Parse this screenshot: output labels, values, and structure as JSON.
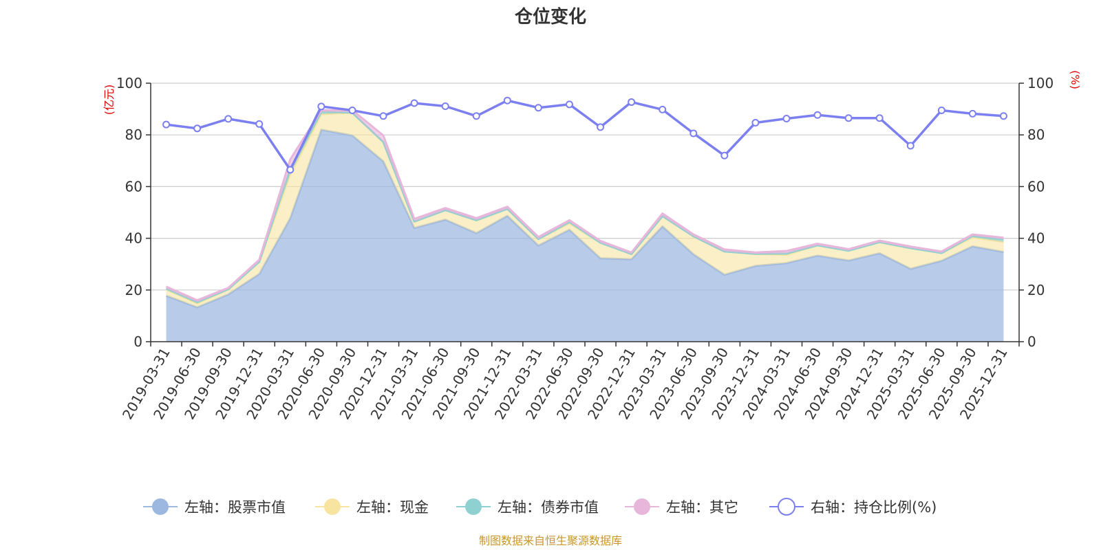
{
  "chart_data": {
    "type": "area",
    "title": "仓位变化",
    "left_unit": "(亿元)",
    "right_unit": "(%)",
    "left_ylim": [
      0,
      100
    ],
    "right_ylim": [
      0,
      100
    ],
    "left_ticks": [
      "0",
      "20",
      "40",
      "60",
      "80",
      "100"
    ],
    "right_ticks": [
      "0",
      "20",
      "40",
      "60",
      "80",
      "100"
    ],
    "categories": [
      "2019-03-31",
      "2019-06-30",
      "2019-09-30",
      "2019-12-31",
      "2020-03-31",
      "2020-06-30",
      "2020-09-30",
      "2020-12-31",
      "2021-03-31",
      "2021-06-30",
      "2021-09-30",
      "2021-12-31",
      "2022-03-31",
      "2022-06-30",
      "2022-09-30",
      "2022-12-31",
      "2023-03-31",
      "2023-06-30",
      "2023-09-30",
      "2023-12-31",
      "2024-03-31",
      "2024-06-30",
      "2024-09-30",
      "2024-12-31",
      "2025-03-31",
      "2025-06-30",
      "2025-09-30",
      "2025-12-31"
    ],
    "series": [
      {
        "name": "左轴：股票市值",
        "axis": "left",
        "color": "#9db8e0",
        "values": [
          17.8,
          13.3,
          18.3,
          26.2,
          47.8,
          82.0,
          79.8,
          69.8,
          44.0,
          47.2,
          42.0,
          48.7,
          37.2,
          43.3,
          32.3,
          31.9,
          44.6,
          33.8,
          25.9,
          29.3,
          30.4,
          33.3,
          31.4,
          34.2,
          28.2,
          31.3,
          36.9,
          34.7
        ]
      },
      {
        "name": "左轴：现金",
        "axis": "left",
        "color": "#f7e4a0",
        "values": [
          2.5,
          1.5,
          2.0,
          4.7,
          17.0,
          6.0,
          8.8,
          7.5,
          2.5,
          3.7,
          5.0,
          2.7,
          2.5,
          2.5,
          6.0,
          2.0,
          4.0,
          7.0,
          9.0,
          4.7,
          3.2,
          4.0,
          3.8,
          4.3,
          8.0,
          3.0,
          3.5,
          3.9
        ]
      },
      {
        "name": "左轴：债券市值",
        "axis": "left",
        "color": "#8fd0d0",
        "values": [
          0.2,
          0.5,
          0.0,
          0.0,
          2.2,
          1.0,
          0.0,
          0.0,
          0.0,
          0.0,
          0.0,
          0.0,
          0.0,
          0.5,
          0.0,
          0.0,
          0.0,
          0.0,
          0.0,
          0.0,
          0.5,
          0.0,
          0.0,
          0.0,
          0.0,
          0.0,
          0.5,
          1.0
        ]
      },
      {
        "name": "左轴：其它",
        "axis": "left",
        "color": "#e8b6db",
        "values": [
          0.8,
          0.7,
          0.5,
          0.8,
          3.5,
          0.5,
          1.0,
          2.5,
          1.0,
          0.8,
          0.8,
          0.8,
          0.8,
          0.7,
          0.7,
          0.6,
          1.0,
          0.7,
          0.8,
          0.5,
          1.0,
          0.6,
          0.6,
          0.6,
          0.6,
          0.6,
          0.6,
          0.6
        ]
      },
      {
        "name": "右轴：持仓比例(%)",
        "axis": "right",
        "color": "#7b7ff0",
        "values": [
          84.0,
          82.5,
          86.2,
          84.2,
          66.5,
          91.0,
          89.5,
          87.3,
          92.3,
          91.1,
          87.3,
          93.3,
          90.5,
          91.8,
          83.0,
          92.7,
          89.8,
          80.6,
          72.0,
          84.7,
          86.3,
          87.7,
          86.5,
          86.5,
          75.8,
          89.5,
          88.2,
          87.3
        ]
      }
    ],
    "legend_position": "bottom"
  },
  "footer": {
    "source": "制图数据来自恒生聚源数据库"
  }
}
